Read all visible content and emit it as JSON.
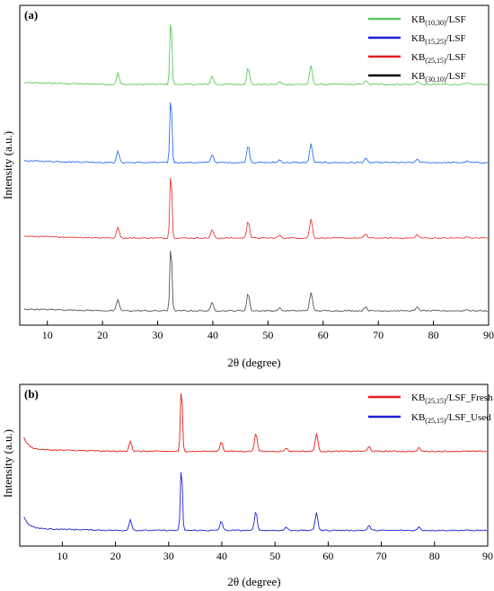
{
  "chart_data": [
    {
      "panel_label": "(a)",
      "type": "line",
      "xlabel": "2θ (degree)",
      "ylabel": "Intensity (a.u.)",
      "xlim": [
        5,
        90
      ],
      "x_ticks": [
        10,
        20,
        30,
        40,
        50,
        60,
        70,
        80,
        90
      ],
      "legend_position": "top-right",
      "series": [
        {
          "base": "KB",
          "sub": "(10,30)",
          "suffix": "/LSF",
          "color": "#5bc95b",
          "offset": 3
        },
        {
          "base": "KB",
          "sub": "(15,25)",
          "suffix": "/LSF",
          "color": "#2a6ef0",
          "offset": 2
        },
        {
          "base": "KB",
          "sub": "(25,15)",
          "suffix": "/LSF",
          "color": "#ee3b3b",
          "offset": 1
        },
        {
          "base": "KB",
          "sub": "(30,10)",
          "suffix": "/LSF",
          "color": "#555555",
          "offset": 0
        }
      ],
      "legend_colors": [
        "#5bc95b",
        "#1f1fd6",
        "#e81c1c",
        "#000000"
      ],
      "peaks": [
        {
          "x": 22.8,
          "h": 0.16
        },
        {
          "x": 32.4,
          "h": 1.0
        },
        {
          "x": 39.9,
          "h": 0.12
        },
        {
          "x": 46.4,
          "h": 0.25
        },
        {
          "x": 52.1,
          "h": 0.04
        },
        {
          "x": 57.8,
          "h": 0.27
        },
        {
          "x": 67.7,
          "h": 0.06
        },
        {
          "x": 77.1,
          "h": 0.05
        },
        {
          "x": 86.1,
          "h": 0.02
        }
      ]
    },
    {
      "panel_label": "(b)",
      "type": "line",
      "xlabel": "2θ (degree)",
      "ylabel": "Intensity (a.u.)",
      "xlim": [
        2,
        90
      ],
      "x_ticks": [
        10,
        20,
        30,
        40,
        50,
        60,
        70,
        80,
        90
      ],
      "legend_position": "top-right",
      "series": [
        {
          "base": "KB",
          "sub": "(25,15)",
          "suffix": "/LSF_Fresh",
          "color": "#e81c1c",
          "offset": 1
        },
        {
          "base": "KB",
          "sub": "(25,15)",
          "suffix": "/LSF_Used",
          "color": "#1f1fd6",
          "offset": 0
        }
      ],
      "peaks": [
        {
          "x": 22.8,
          "h": 0.16
        },
        {
          "x": 32.4,
          "h": 1.0
        },
        {
          "x": 39.9,
          "h": 0.14
        },
        {
          "x": 46.4,
          "h": 0.28
        },
        {
          "x": 52.1,
          "h": 0.05
        },
        {
          "x": 57.8,
          "h": 0.27
        },
        {
          "x": 67.7,
          "h": 0.07
        },
        {
          "x": 77.1,
          "h": 0.05
        }
      ]
    }
  ]
}
